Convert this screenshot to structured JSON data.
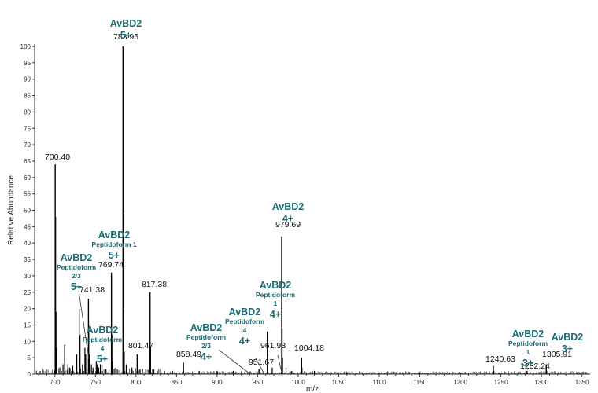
{
  "chart_data": {
    "type": "line",
    "xlabel": "m/z",
    "ylabel": "Relative Abundance",
    "xlim": [
      675,
      1360
    ],
    "ylim": [
      0,
      100
    ],
    "x_ticks": [
      700,
      750,
      800,
      850,
      900,
      950,
      1000,
      1050,
      1100,
      1150,
      1200,
      1250,
      1300,
      1350
    ],
    "y_ticks": [
      0,
      5,
      10,
      15,
      20,
      25,
      30,
      35,
      40,
      45,
      50,
      55,
      60,
      65,
      70,
      75,
      80,
      85,
      90,
      95,
      100
    ],
    "labeled_peaks": [
      {
        "x": 700.4,
        "y": 64,
        "label": "700.40"
      },
      {
        "x": 741.38,
        "y": 23,
        "label": "741.38"
      },
      {
        "x": 769.74,
        "y": 31,
        "label": "769.74"
      },
      {
        "x": 783.95,
        "y": 100,
        "label": "783.95"
      },
      {
        "x": 801.47,
        "y": 6,
        "label": "801.47"
      },
      {
        "x": 817.38,
        "y": 25,
        "label": "817.38"
      },
      {
        "x": 858.49,
        "y": 3.5,
        "label": "858.49"
      },
      {
        "x": 951.67,
        "y": 1.5,
        "label": "951.67"
      },
      {
        "x": 961.93,
        "y": 13,
        "label": "961.93"
      },
      {
        "x": 979.69,
        "y": 42,
        "label": "979.69"
      },
      {
        "x": 1004.18,
        "y": 5,
        "label": "1004.18"
      },
      {
        "x": 1240.63,
        "y": 2.5,
        "label": "1240.63"
      },
      {
        "x": 1282.24,
        "y": 1,
        "label": "1282.24"
      },
      {
        "x": 1305.91,
        "y": 3,
        "label": "1305.91"
      }
    ],
    "other_peaks": [
      {
        "x": 700.9,
        "y": 48
      },
      {
        "x": 701.4,
        "y": 19
      },
      {
        "x": 702.0,
        "y": 8
      },
      {
        "x": 706,
        "y": 2
      },
      {
        "x": 710,
        "y": 3
      },
      {
        "x": 712,
        "y": 9
      },
      {
        "x": 716,
        "y": 3
      },
      {
        "x": 718,
        "y": 2
      },
      {
        "x": 722,
        "y": 2.5
      },
      {
        "x": 727,
        "y": 6
      },
      {
        "x": 730,
        "y": 20
      },
      {
        "x": 731,
        "y": 12
      },
      {
        "x": 734,
        "y": 3
      },
      {
        "x": 737,
        "y": 8
      },
      {
        "x": 738,
        "y": 6
      },
      {
        "x": 741.8,
        "y": 15
      },
      {
        "x": 742.5,
        "y": 6
      },
      {
        "x": 745,
        "y": 3
      },
      {
        "x": 747,
        "y": 2
      },
      {
        "x": 751,
        "y": 4
      },
      {
        "x": 752,
        "y": 3
      },
      {
        "x": 754,
        "y": 2
      },
      {
        "x": 756,
        "y": 3
      },
      {
        "x": 758,
        "y": 3
      },
      {
        "x": 763,
        "y": 1.5
      },
      {
        "x": 770.3,
        "y": 12
      },
      {
        "x": 771,
        "y": 4
      },
      {
        "x": 775,
        "y": 2
      },
      {
        "x": 784.5,
        "y": 50
      },
      {
        "x": 785.0,
        "y": 20
      },
      {
        "x": 785.5,
        "y": 7
      },
      {
        "x": 788,
        "y": 3
      },
      {
        "x": 795,
        "y": 2
      },
      {
        "x": 802,
        "y": 4
      },
      {
        "x": 805,
        "y": 1.5
      },
      {
        "x": 812,
        "y": 1.5
      },
      {
        "x": 818,
        "y": 8
      },
      {
        "x": 822,
        "y": 1.5
      },
      {
        "x": 835,
        "y": 1
      },
      {
        "x": 845,
        "y": 1
      },
      {
        "x": 878,
        "y": 1
      },
      {
        "x": 900,
        "y": 1
      },
      {
        "x": 920,
        "y": 1
      },
      {
        "x": 940,
        "y": 0.8
      },
      {
        "x": 962.5,
        "y": 6
      },
      {
        "x": 968,
        "y": 2
      },
      {
        "x": 980.2,
        "y": 14
      },
      {
        "x": 980.7,
        "y": 5
      },
      {
        "x": 985,
        "y": 2
      },
      {
        "x": 992,
        "y": 1
      },
      {
        "x": 1004.7,
        "y": 2
      },
      {
        "x": 1020,
        "y": 1
      },
      {
        "x": 1060,
        "y": 0.5
      },
      {
        "x": 1100,
        "y": 0.5
      },
      {
        "x": 1150,
        "y": 0.5
      },
      {
        "x": 1200,
        "y": 0.5
      },
      {
        "x": 1241.3,
        "y": 1
      },
      {
        "x": 1306.5,
        "y": 1
      }
    ],
    "annotations": [
      {
        "lines": [
          {
            "text": "AvBD2",
            "style": "main"
          },
          {
            "text": "5+",
            "style": "charge"
          }
        ],
        "x": 783.95
      },
      {
        "lines": [
          {
            "text": "AvBD2",
            "style": "main"
          },
          {
            "text": "4+",
            "style": "charge"
          }
        ],
        "x": 979.69
      },
      {
        "lines": [
          {
            "text": "AvBD2",
            "style": "main"
          },
          {
            "text": "Peptidoform 1",
            "style": "small"
          },
          {
            "text": "5+",
            "style": "charge"
          }
        ],
        "x": 769.74
      },
      {
        "lines": [
          {
            "text": "AvBD2",
            "style": "main"
          },
          {
            "text": "Peptidoform",
            "style": "small"
          },
          {
            "text": "2/3",
            "style": "small"
          },
          {
            "text": "5+",
            "style": "charge"
          }
        ],
        "x": 741.38
      },
      {
        "lines": [
          {
            "text": "AvBD2",
            "style": "main"
          },
          {
            "text": "Peptidoform",
            "style": "small"
          },
          {
            "text": "4",
            "style": "small"
          },
          {
            "text": "5+",
            "style": "charge"
          }
        ],
        "x": 746
      },
      {
        "lines": [
          {
            "text": "AvBD2",
            "style": "main"
          },
          {
            "text": "Peptidoform",
            "style": "small"
          },
          {
            "text": "1",
            "style": "small"
          },
          {
            "text": "4+",
            "style": "charge"
          }
        ],
        "x": 961.93
      },
      {
        "lines": [
          {
            "text": "AvBD2",
            "style": "main"
          },
          {
            "text": "Peptidoform",
            "style": "small"
          },
          {
            "text": "4",
            "style": "small"
          },
          {
            "text": "4+",
            "style": "charge"
          }
        ],
        "x": 951.67
      },
      {
        "lines": [
          {
            "text": "AvBD2",
            "style": "main"
          },
          {
            "text": "Peptidoform",
            "style": "small"
          },
          {
            "text": "2/3",
            "style": "small"
          },
          {
            "text": "4+",
            "style": "charge"
          }
        ],
        "x": 940
      },
      {
        "lines": [
          {
            "text": "AvBD2",
            "style": "main"
          },
          {
            "text": "Peptidoform",
            "style": "small"
          },
          {
            "text": "1",
            "style": "small"
          },
          {
            "text": "3+",
            "style": "charge"
          }
        ],
        "x": 1282.24
      },
      {
        "lines": [
          {
            "text": "AvBD2",
            "style": "main"
          },
          {
            "text": "3+",
            "style": "charge"
          }
        ],
        "x": 1305.91
      }
    ],
    "grid": false,
    "colors": {
      "trace": "#000000",
      "annotation": "#1e6b76",
      "axis": "#333333"
    }
  }
}
